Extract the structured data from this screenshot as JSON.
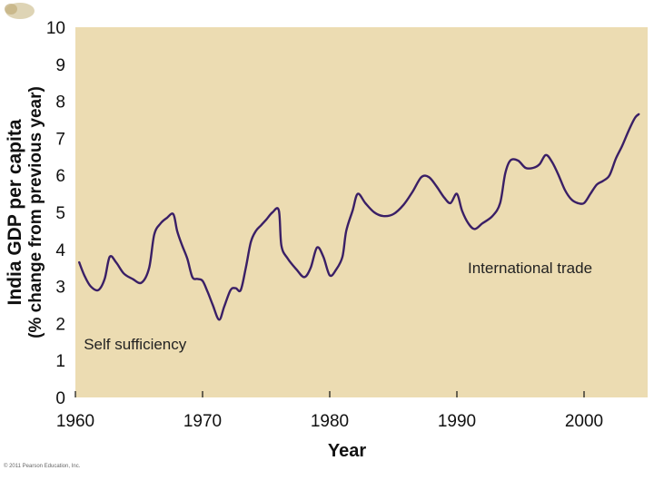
{
  "chart_data": {
    "type": "line",
    "xlabel": "Year",
    "ylabel_line1": "India GDP per capita",
    "ylabel_line2": "(% change from previous year)",
    "xlim": [
      1960,
      2005
    ],
    "ylim": [
      0,
      10
    ],
    "xticks": [
      1960,
      1970,
      1980,
      1990,
      2000
    ],
    "yticks": [
      0,
      1,
      2,
      3,
      4,
      5,
      6,
      7,
      8,
      9,
      10
    ],
    "grid": false,
    "colors": {
      "plot_background": "#ecdcb2",
      "line": "#3a1f66"
    },
    "annotations": [
      {
        "text": "Self sufficiency",
        "x": 1959.8,
        "y": 1.45
      },
      {
        "text": "International trade",
        "x": 1990,
        "y": 3.5
      }
    ],
    "series": [
      {
        "x": [
          1960.3,
          1960.7,
          1961.2,
          1961.8,
          1962.3,
          1962.7,
          1963.2,
          1963.8,
          1964.5,
          1965.2,
          1965.8,
          1966.2,
          1966.7,
          1967.2,
          1967.7,
          1968.0,
          1968.4,
          1968.8,
          1969.2,
          1969.6,
          1970.0,
          1970.4,
          1970.8,
          1971.3,
          1971.7,
          1972.2,
          1972.6,
          1973.0,
          1973.4,
          1973.8,
          1974.2,
          1974.6,
          1975.0,
          1975.5,
          1976.0,
          1976.2,
          1976.7,
          1977.4,
          1978.0,
          1978.5,
          1979.0,
          1979.5,
          1980.0,
          1980.5,
          1981.0,
          1981.3,
          1981.8,
          1982.2,
          1982.8,
          1983.5,
          1984.2,
          1985.0,
          1985.8,
          1986.5,
          1987.2,
          1987.8,
          1988.4,
          1989.0,
          1989.5,
          1990.0,
          1990.4,
          1990.9,
          1991.4,
          1992.0,
          1992.8,
          1993.4,
          1993.8,
          1994.2,
          1994.8,
          1995.4,
          1996.0,
          1996.5,
          1997.0,
          1997.5,
          1998.0,
          1998.5,
          1999.0,
          1999.5,
          2000.0,
          2000.5,
          2001.0,
          2001.5,
          2002.0,
          2002.5,
          2003.0,
          2003.5,
          2004.0,
          2004.3
        ],
        "y": [
          3.65,
          3.3,
          3.0,
          2.9,
          3.2,
          3.8,
          3.65,
          3.35,
          3.2,
          3.1,
          3.5,
          4.4,
          4.7,
          4.85,
          4.95,
          4.5,
          4.1,
          3.75,
          3.25,
          3.2,
          3.15,
          2.85,
          2.5,
          2.1,
          2.45,
          2.9,
          2.95,
          2.9,
          3.5,
          4.2,
          4.5,
          4.65,
          4.8,
          5.0,
          5.05,
          4.1,
          3.75,
          3.45,
          3.25,
          3.5,
          4.05,
          3.8,
          3.3,
          3.45,
          3.8,
          4.5,
          5.05,
          5.5,
          5.25,
          5.0,
          4.9,
          4.95,
          5.2,
          5.55,
          5.95,
          5.95,
          5.7,
          5.4,
          5.25,
          5.5,
          5.05,
          4.7,
          4.55,
          4.7,
          4.9,
          5.25,
          6.05,
          6.4,
          6.4,
          6.2,
          6.2,
          6.3,
          6.55,
          6.35,
          6.0,
          5.6,
          5.35,
          5.25,
          5.25,
          5.5,
          5.75,
          5.85,
          6.0,
          6.45,
          6.8,
          7.2,
          7.55,
          7.65
        ]
      }
    ],
    "copyright": "© 2011 Pearson Education, Inc."
  }
}
